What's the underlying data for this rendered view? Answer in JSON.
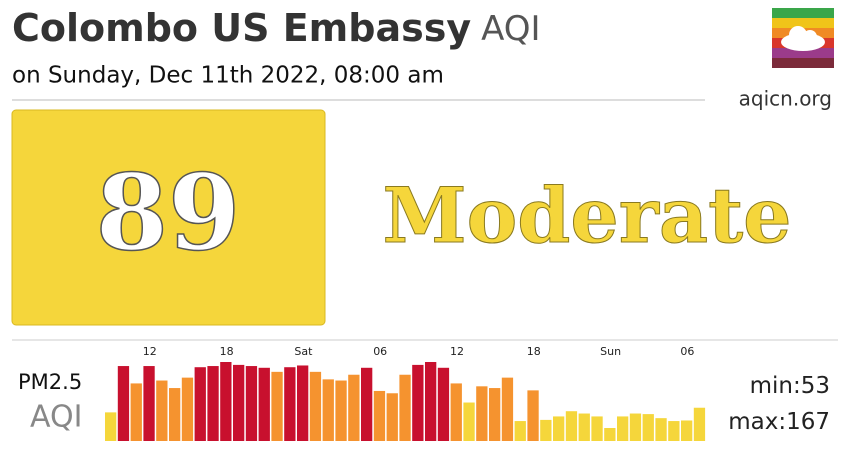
{
  "header": {
    "title": "Colombo US Embassy",
    "title_suffix": "AQI",
    "subtitle": "on Sunday, Dec 11th 2022, 08:00 am",
    "site": "aqicn.org"
  },
  "aqi": {
    "value": 89,
    "level": "Moderate"
  },
  "chart_data": {
    "type": "bar",
    "label": "PM2.5",
    "sublabel": "AQI",
    "categories": [
      null,
      null,
      null,
      "12",
      null,
      null,
      null,
      null,
      null,
      "18",
      null,
      null,
      null,
      null,
      null,
      "Sat",
      null,
      null,
      null,
      null,
      null,
      "06",
      null,
      null,
      null,
      null,
      null,
      "12",
      null,
      null,
      null,
      null,
      null,
      "18",
      null,
      null,
      null,
      null,
      null,
      "Sun",
      null,
      null,
      null,
      null,
      null,
      "06",
      null
    ],
    "values": [
      80,
      160,
      130,
      160,
      135,
      122,
      140,
      158,
      160,
      167,
      162,
      160,
      157,
      150,
      158,
      161,
      150,
      137,
      135,
      145,
      157,
      117,
      113,
      145,
      162,
      167,
      157,
      130,
      97,
      125,
      122,
      140,
      65,
      118,
      67,
      73,
      82,
      78,
      73,
      53,
      73,
      78,
      77,
      70,
      65,
      66,
      88
    ],
    "colors": [
      "#f5d63b",
      "#c8102e",
      "#f5932f",
      "#c8102e",
      "#f5932f",
      "#f5932f",
      "#f5932f",
      "#c8102e",
      "#c8102e",
      "#c8102e",
      "#c8102e",
      "#c8102e",
      "#c8102e",
      "#f5932f",
      "#c8102e",
      "#c8102e",
      "#f5932f",
      "#f5932f",
      "#f5932f",
      "#f5932f",
      "#c8102e",
      "#f5932f",
      "#f5932f",
      "#f5932f",
      "#c8102e",
      "#c8102e",
      "#c8102e",
      "#f5932f",
      "#f5d63b",
      "#f5932f",
      "#f5932f",
      "#f5932f",
      "#f5d63b",
      "#f5932f",
      "#f5d63b",
      "#f5d63b",
      "#f5d63b",
      "#f5d63b",
      "#f5d63b",
      "#f5d63b",
      "#f5d63b",
      "#f5d63b",
      "#f5d63b",
      "#f5d63b",
      "#f5d63b",
      "#f5d63b",
      "#f5d63b"
    ],
    "min_label": "min:",
    "min": 53,
    "max_label": "max:",
    "max": 167
  }
}
